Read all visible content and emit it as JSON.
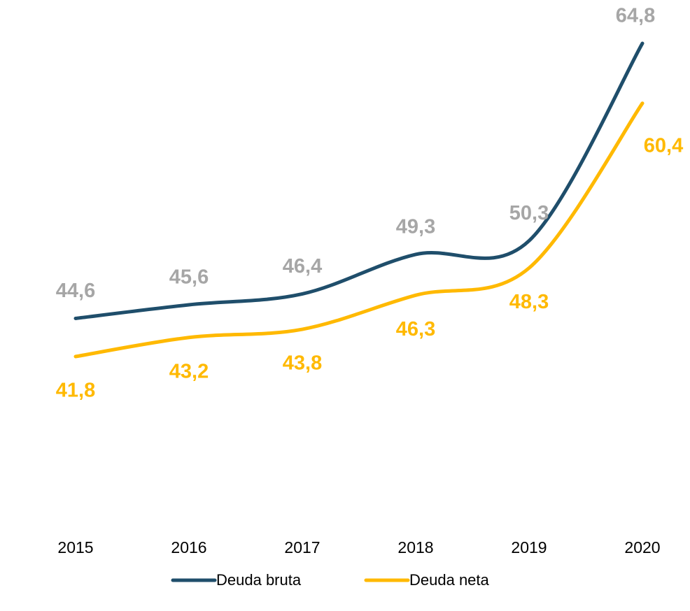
{
  "chart_data": {
    "type": "line",
    "categories": [
      "2015",
      "2016",
      "2017",
      "2018",
      "2019",
      "2020"
    ],
    "series": [
      {
        "name": "Deuda bruta",
        "color": "#1f4e6b",
        "label_color": "#a6a6a6",
        "values": [
          44.6,
          45.6,
          46.4,
          49.3,
          50.3,
          64.8
        ],
        "value_labels": [
          "44,6",
          "45,6",
          "46,4",
          "49,3",
          "50,3",
          "64,8"
        ]
      },
      {
        "name": "Deuda neta",
        "color": "#ffb900",
        "label_color": "#ffb900",
        "values": [
          41.8,
          43.2,
          43.8,
          46.3,
          48.3,
          60.4
        ],
        "value_labels": [
          "41,8",
          "43,2",
          "43,8",
          "46,3",
          "48,3",
          "60,4"
        ]
      }
    ]
  }
}
